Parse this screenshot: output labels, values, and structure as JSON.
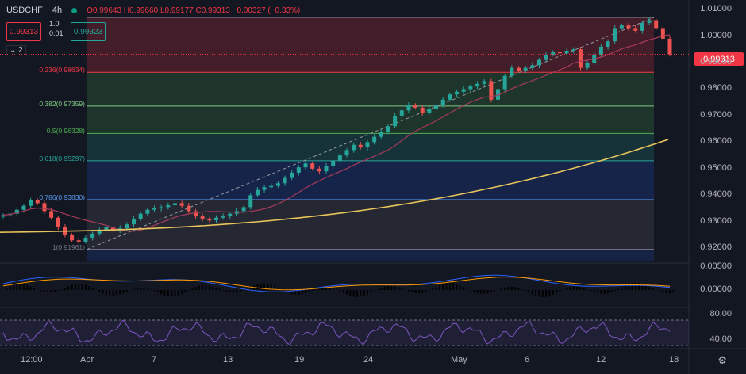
{
  "header": {
    "symbol": "USDCHF",
    "timeframe": "4h",
    "open": "O0.99643",
    "high": "H0.99660",
    "low": "L0.99177",
    "close": "C0.99313",
    "change": "−0.00327 (−0.33%)"
  },
  "trade": {
    "sell_price": "0.99313",
    "qty_top": "1.0",
    "qty_bottom": "0.01",
    "buy_price": "0.99323"
  },
  "collapse_label": "2",
  "current_price": "0.99313",
  "price_axis": [
    "1.01000",
    "1.00000",
    "0.99000",
    "0.98000",
    "0.97000",
    "0.96000",
    "0.95000",
    "0.94000",
    "0.93000",
    "0.92000"
  ],
  "macd_axis": [
    "0.00500",
    "0.00000"
  ],
  "rsi_axis": [
    "80.00",
    "40.00"
  ],
  "time_axis": [
    "12:00",
    "Apr",
    "7",
    "13",
    "19",
    "24",
    "May",
    "6",
    "12",
    "18"
  ],
  "fib_levels": [
    {
      "label": "1(0.91961)",
      "price": 0.91961,
      "color": "#787b86"
    },
    {
      "label": "0.786(0.93830)",
      "price": 0.9383,
      "color": "#5b9cf6"
    },
    {
      "label": "0.618(0.95297)",
      "price": 0.95297,
      "color": "#26a69a"
    },
    {
      "label": "0.5(0.96328)",
      "price": 0.96328,
      "color": "#4caf50"
    },
    {
      "label": "0.382(0.97359)",
      "price": 0.97359,
      "color": "#81c784"
    },
    {
      "label": "0.236(0.98634)",
      "price": 0.98634,
      "color": "#f23645"
    },
    {
      "label": "",
      "price": 1.007,
      "color": "#787b86"
    }
  ],
  "colors": {
    "up": "#26a69a",
    "down": "#ef5350",
    "ma200": "#e8c45a",
    "ma50": "#a83a5a",
    "macd": "#2962ff",
    "signal": "#ff9800",
    "rsi": "#7e57c2"
  },
  "chart_data": {
    "type": "candlestick",
    "interval": "4h",
    "ylim": [
      0.915,
      1.013
    ],
    "close_series": [
      0.9325,
      0.933,
      0.9345,
      0.936,
      0.938,
      0.937,
      0.934,
      0.9315,
      0.928,
      0.925,
      0.923,
      0.9225,
      0.924,
      0.9255,
      0.927,
      0.928,
      0.9265,
      0.9275,
      0.929,
      0.931,
      0.933,
      0.9345,
      0.935,
      0.9355,
      0.9362,
      0.937,
      0.936,
      0.934,
      0.932,
      0.931,
      0.9305,
      0.9315,
      0.932,
      0.933,
      0.934,
      0.9355,
      0.94,
      0.942,
      0.943,
      0.9435,
      0.9445,
      0.9465,
      0.9485,
      0.9505,
      0.952,
      0.95,
      0.949,
      0.951,
      0.953,
      0.955,
      0.957,
      0.959,
      0.958,
      0.96,
      0.962,
      0.964,
      0.966,
      0.97,
      0.972,
      0.974,
      0.973,
      0.971,
      0.9725,
      0.974,
      0.976,
      0.978,
      0.979,
      0.98,
      0.981,
      0.982,
      0.983,
      0.976,
      0.98,
      0.985,
      0.988,
      0.987,
      0.988,
      0.989,
      0.991,
      0.993,
      0.994,
      0.9935,
      0.9945,
      0.995,
      0.988,
      0.99,
      0.993,
      0.996,
      0.998,
      1.003,
      1.004,
      1.003,
      1.002,
      1.005,
      1.006,
      1.003,
      0.999,
      0.9931
    ]
  }
}
